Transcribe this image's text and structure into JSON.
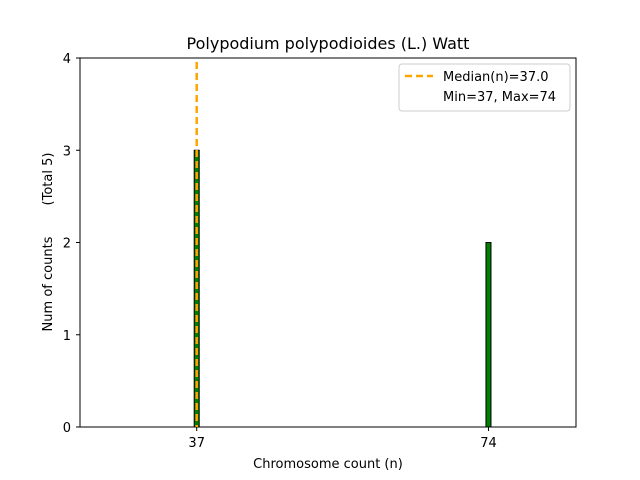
{
  "chart_data": {
    "type": "bar",
    "title": "Polypodium polypodioides (L.) Watt",
    "xlabel": "Chromosome count (n)",
    "ylabel": "Num of counts",
    "ylabel_total": "(Total 5)",
    "xlim": [
      22.2,
      85.1
    ],
    "ylim": [
      0,
      4
    ],
    "yticks": [
      0,
      1,
      2,
      3,
      4
    ],
    "xticks": [
      37,
      74
    ],
    "bars": [
      {
        "x": 37,
        "value": 3
      },
      {
        "x": 74,
        "value": 2
      }
    ],
    "median": 37.0,
    "legend": {
      "position": "top-right",
      "entries": [
        {
          "label": "Median(n)=37.0",
          "style": "dashed-line"
        },
        {
          "label": "Min=37, Max=74",
          "style": "none"
        }
      ]
    },
    "colors": {
      "bar_fill": "#008000",
      "bar_edge": "#000000",
      "median_line": "#FFA500"
    },
    "grid": false
  }
}
